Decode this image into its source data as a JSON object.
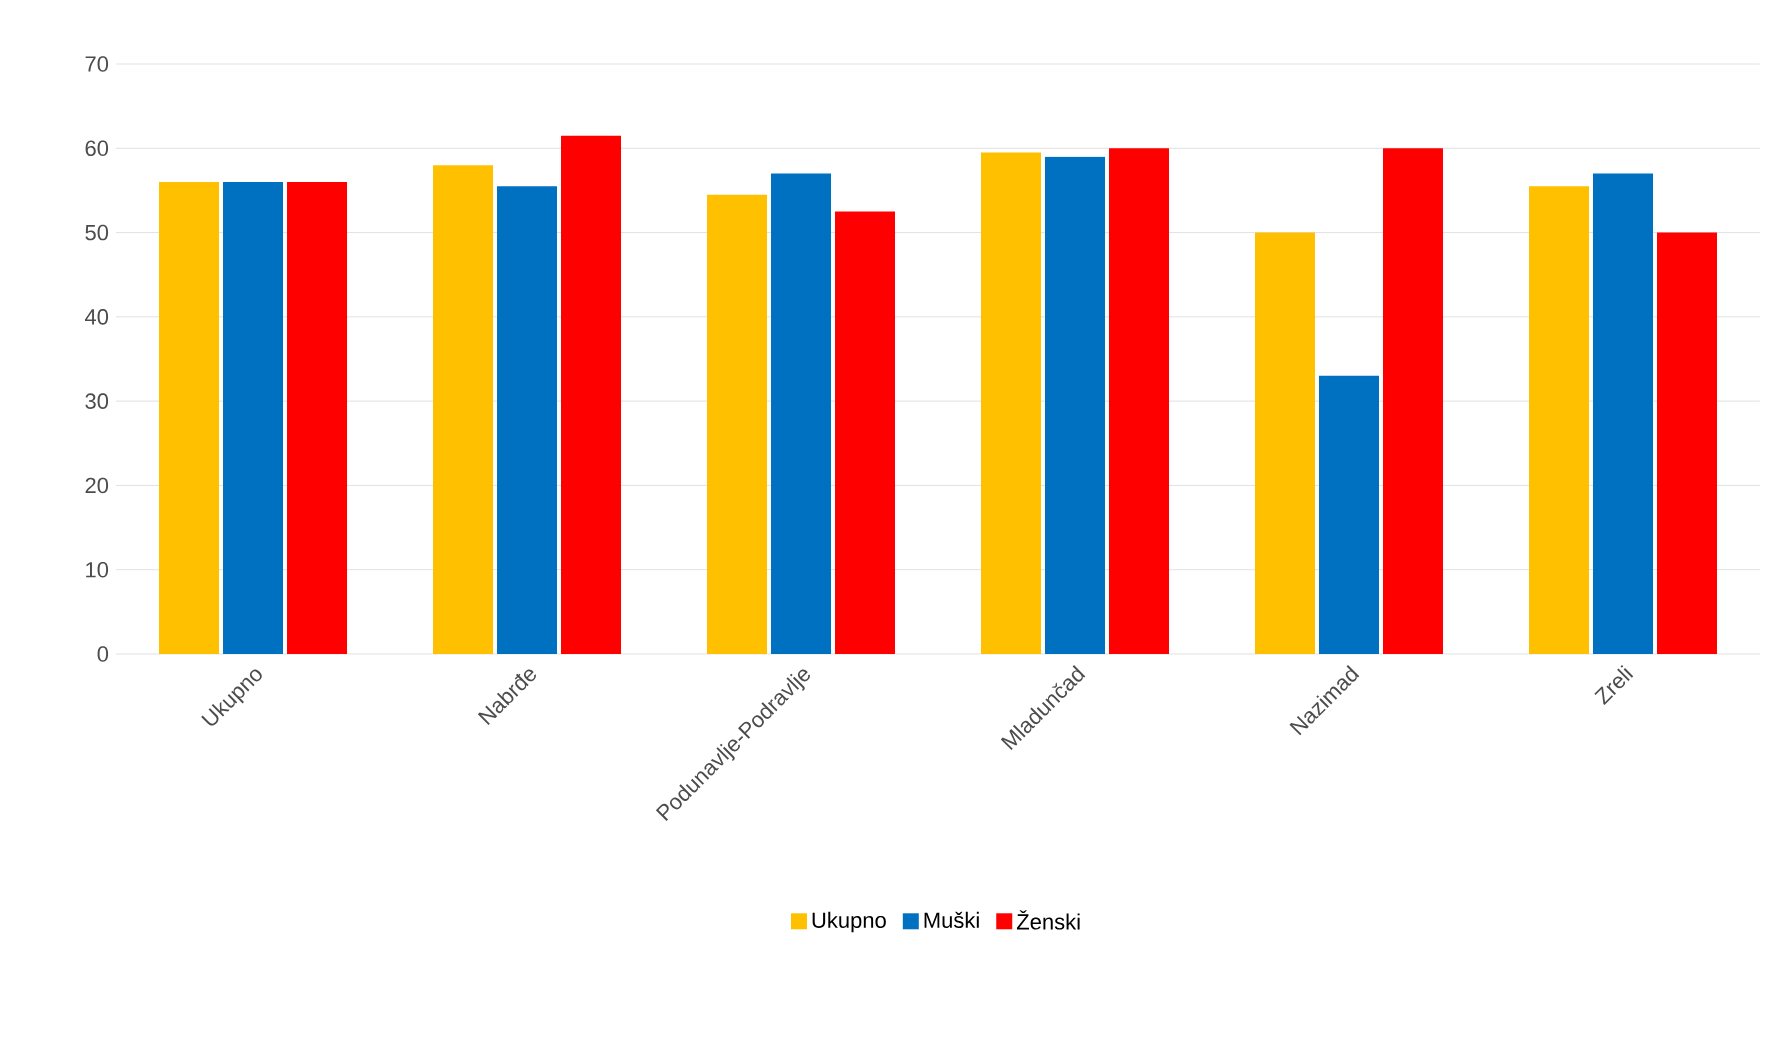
{
  "chart_data": {
    "type": "bar",
    "categories": [
      "Ukupno",
      "Nabrđe",
      "Podunavlje-Podravlje",
      "Mladunčad",
      "Nazimad",
      "Zreli"
    ],
    "series": [
      {
        "name": "Ukupno",
        "color": "#ffc000",
        "values": [
          56,
          58,
          54.5,
          59.5,
          50,
          55.5
        ]
      },
      {
        "name": "Muški",
        "color": "#0070c0",
        "values": [
          56,
          55.5,
          57,
          59,
          33,
          57
        ]
      },
      {
        "name": "Ženski",
        "color": "#ff0000",
        "values": [
          56,
          61.5,
          52.5,
          60,
          60,
          50
        ]
      }
    ],
    "ylim": [
      0,
      70
    ],
    "yticks": [
      0,
      10,
      20,
      30,
      40,
      50,
      60,
      70
    ],
    "grid": "y",
    "legend": "bottom"
  }
}
